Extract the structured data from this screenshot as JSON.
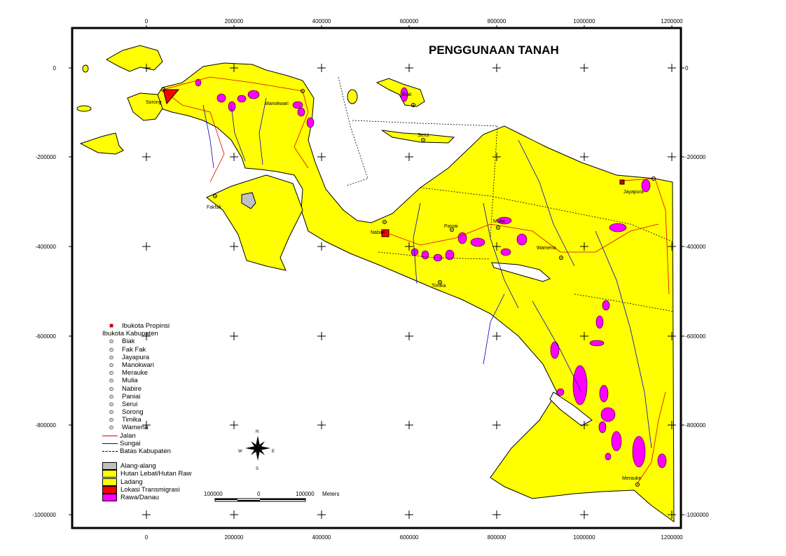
{
  "title": "PENGGUNAAN TANAH",
  "x_ticks": [
    "0",
    "200000",
    "400000",
    "600000",
    "800000",
    "1000000",
    "1200000"
  ],
  "y_ticks": [
    "0",
    "-200000",
    "-400000",
    "-600000",
    "-800000",
    "-1000000"
  ],
  "cities": [
    {
      "name": "Sorong"
    },
    {
      "name": "Manokwari"
    },
    {
      "name": "Biak"
    },
    {
      "name": "Serui"
    },
    {
      "name": "Fakfak"
    },
    {
      "name": "Nabire"
    },
    {
      "name": "Paniai"
    },
    {
      "name": "Mulia"
    },
    {
      "name": "Wamena"
    },
    {
      "name": "Timika"
    },
    {
      "name": "Jayapura"
    },
    {
      "name": "Merauke"
    }
  ],
  "legend": {
    "provincial_capital": "Ibukota Propinsi",
    "regency_capitals_heading": "Ibukota Kabupaten",
    "regency_capitals": [
      "Biak",
      "Fak Fak",
      "Jayapura",
      "Manokwari",
      "Merauke",
      "Mulia",
      "Nabire",
      "Paniai",
      "Serui",
      "Sorong",
      "Timika",
      "Wamena"
    ],
    "lines": [
      {
        "label": "Jalan",
        "color": "#e00000",
        "style": "solid"
      },
      {
        "label": "Sungai",
        "color": "#0000c0",
        "style": "solid"
      },
      {
        "label": "Batas Kabupaten",
        "color": "#000000",
        "style": "dashed"
      }
    ],
    "land_use": [
      {
        "label": "Alang-alang",
        "color": "#c0c0c0"
      },
      {
        "label": "Hutan Lebat/Hutan Raw",
        "color": "#ffff00"
      },
      {
        "label": "Ladang",
        "color": "#ffff00"
      },
      {
        "label": "Lokasi Transmigrasi",
        "color": "#ff0000"
      },
      {
        "label": "Rawa/Danau",
        "color": "#ff00ff"
      }
    ]
  },
  "compass": {
    "n": "N",
    "s": "S",
    "e": "E",
    "w": "W"
  },
  "scale_bar": {
    "left": "100000",
    "mid": "0",
    "right": "100000",
    "unit": "Meters"
  }
}
